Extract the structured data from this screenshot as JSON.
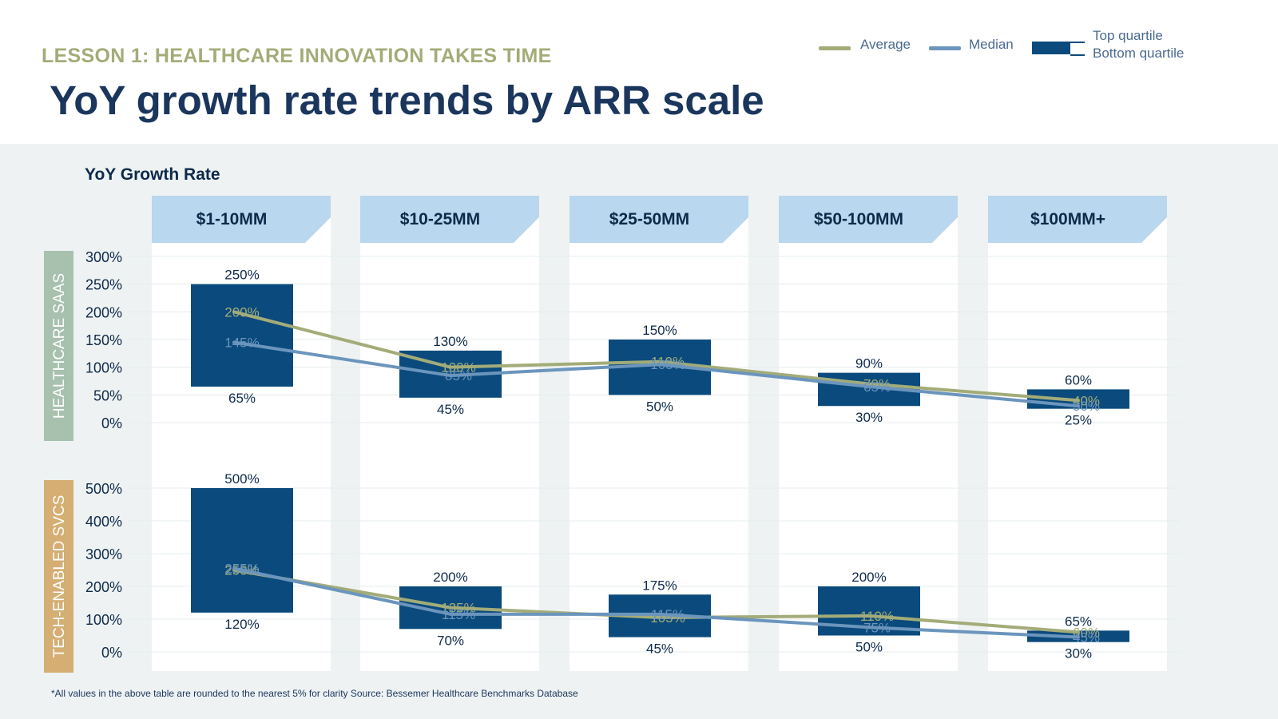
{
  "header": {
    "kicker": "LESSON 1: HEALTHCARE INNOVATION TAKES TIME",
    "title": "YoY growth rate trends by ARR scale"
  },
  "legend": {
    "average": "Average",
    "median": "Median",
    "top_quartile": "Top quartile",
    "bottom_quartile": "Bottom quartile"
  },
  "footnote": "*All values in the above table are rounded to the nearest 5% for clarity Source: Bessemer Healthcare Benchmarks Database",
  "colors": {
    "kicker": "#a3ac78",
    "title": "#1b365d",
    "average": "#a3ac78",
    "median": "#6b95bd",
    "box": "#0b4a7c",
    "text": "#0e2a4a",
    "header_band": "#b9d7ee",
    "saas_band": "#a7c1ae",
    "svcs_band": "#d4ae73",
    "column_bg": "#ffffff",
    "panel_bg": "#eef2f2"
  },
  "chart_data": [
    {
      "type": "box-range with average and median lines",
      "ylabel": "YoY Growth Rate",
      "group_label": "HEALTHCARE SAAS",
      "categories": [
        "$1-10MM",
        "$10-25MM",
        "$25-50MM",
        "$50-100MM",
        "$100MM+"
      ],
      "yticks": [
        0,
        50,
        100,
        150,
        200,
        250,
        300
      ],
      "ytick_labels": [
        "0%",
        "50%",
        "100%",
        "150%",
        "200%",
        "250%",
        "300%"
      ],
      "ylim": [
        0,
        300
      ],
      "top_quartile": [
        250,
        130,
        150,
        90,
        60
      ],
      "bottom_quartile": [
        65,
        45,
        50,
        30,
        25
      ],
      "series": [
        {
          "name": "Average",
          "values": [
            200,
            100,
            110,
            70,
            40
          ]
        },
        {
          "name": "Median",
          "values": [
            145,
            85,
            105,
            65,
            30
          ]
        }
      ]
    },
    {
      "type": "box-range with average and median lines",
      "ylabel": "",
      "group_label": "TECH-ENABLED SVCS",
      "categories": [
        "$1-10MM",
        "$10-25MM",
        "$25-50MM",
        "$50-100MM",
        "$100MM+"
      ],
      "yticks": [
        0,
        100,
        200,
        300,
        400,
        500
      ],
      "ytick_labels": [
        "0%",
        "100%",
        "200%",
        "300%",
        "400%",
        "500%"
      ],
      "ylim": [
        0,
        500
      ],
      "top_quartile": [
        500,
        200,
        175,
        200,
        65
      ],
      "bottom_quartile": [
        120,
        70,
        45,
        50,
        30
      ],
      "series": [
        {
          "name": "Average",
          "values": [
            250,
            135,
            105,
            110,
            60
          ]
        },
        {
          "name": "Median",
          "values": [
            255,
            115,
            115,
            75,
            45
          ]
        }
      ]
    }
  ]
}
